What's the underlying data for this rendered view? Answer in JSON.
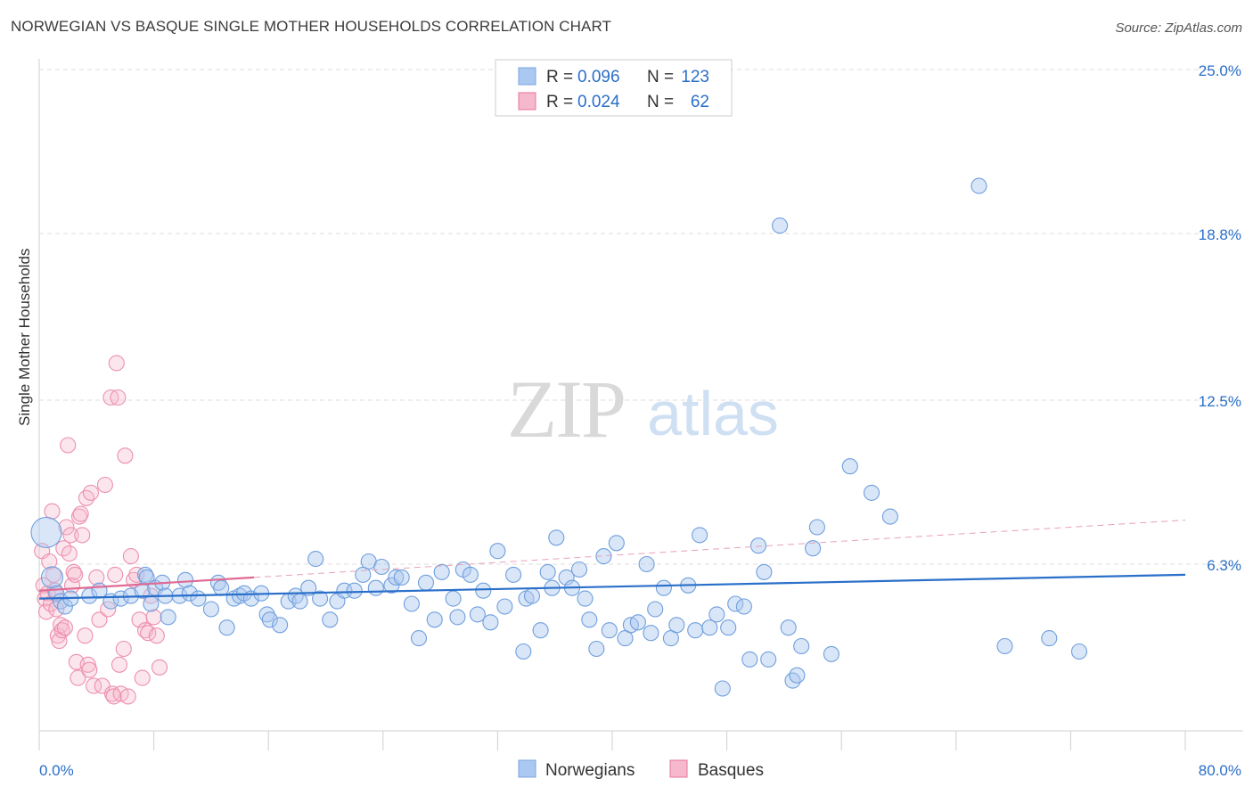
{
  "title": "NORWEGIAN VS BASQUE SINGLE MOTHER HOUSEHOLDS CORRELATION CHART",
  "source": "Source: ZipAtlas.com",
  "watermark": {
    "zip": "ZIP",
    "atlas": "atlas"
  },
  "colors": {
    "blue": "#2a6fc9",
    "blue_fill": "#aac8f0",
    "pink": "#e8739b",
    "pink_fill": "#f6b8cc",
    "axis_text": "#2a6fc9",
    "grid": "#dddddd"
  },
  "legend": {
    "rows": [
      {
        "r_label": "R =",
        "r_value": "0.096",
        "n_label": "N =",
        "n_value": "123"
      },
      {
        "r_label": "R =",
        "r_value": "0.024",
        "n_label": "N =",
        "n_value": "62"
      }
    ]
  },
  "chart_data": {
    "type": "scatter",
    "title": "NORWEGIAN VS BASQUE SINGLE MOTHER HOUSEHOLDS CORRELATION CHART",
    "xlabel": "",
    "ylabel": "Single Mother Households",
    "xlim": [
      0,
      80
    ],
    "ylim": [
      0,
      25
    ],
    "x_tick_labels": [
      "0.0%",
      "80.0%"
    ],
    "y_ticks": [
      6.3,
      12.5,
      18.8,
      25.0
    ],
    "y_tick_labels": [
      "6.3%",
      "12.5%",
      "18.8%",
      "25.0%"
    ],
    "grid": true,
    "legend_position": "top-center",
    "series": [
      {
        "name": "Norwegians",
        "color": "#2a6fc9",
        "trend": {
          "x": [
            0,
            80
          ],
          "y": [
            5.0,
            5.9
          ]
        },
        "points": [
          [
            0.5,
            7.5
          ],
          [
            0.9,
            5.8
          ],
          [
            1.2,
            5.2
          ],
          [
            1.5,
            4.9
          ],
          [
            1.8,
            4.7
          ],
          [
            2.2,
            5.0
          ],
          [
            3.5,
            5.1
          ],
          [
            4.2,
            5.3
          ],
          [
            5.0,
            4.9
          ],
          [
            5.7,
            5.0
          ],
          [
            6.4,
            5.1
          ],
          [
            7.2,
            5.3
          ],
          [
            7.4,
            5.9
          ],
          [
            7.5,
            5.8
          ],
          [
            7.8,
            4.8
          ],
          [
            8.1,
            5.4
          ],
          [
            8.6,
            5.6
          ],
          [
            8.8,
            5.1
          ],
          [
            9.0,
            4.3
          ],
          [
            9.8,
            5.1
          ],
          [
            10.2,
            5.7
          ],
          [
            10.5,
            5.2
          ],
          [
            11.1,
            5.0
          ],
          [
            12.0,
            4.6
          ],
          [
            12.5,
            5.6
          ],
          [
            12.7,
            5.4
          ],
          [
            13.1,
            3.9
          ],
          [
            13.6,
            5.0
          ],
          [
            14.0,
            5.1
          ],
          [
            14.3,
            5.2
          ],
          [
            14.8,
            5.0
          ],
          [
            15.5,
            5.2
          ],
          [
            15.9,
            4.4
          ],
          [
            16.1,
            4.2
          ],
          [
            16.8,
            4.0
          ],
          [
            17.4,
            4.9
          ],
          [
            17.9,
            5.1
          ],
          [
            18.2,
            4.9
          ],
          [
            18.8,
            5.4
          ],
          [
            19.3,
            6.5
          ],
          [
            19.6,
            5.0
          ],
          [
            20.3,
            4.2
          ],
          [
            20.8,
            4.9
          ],
          [
            21.3,
            5.3
          ],
          [
            22.0,
            5.3
          ],
          [
            22.6,
            5.9
          ],
          [
            23.0,
            6.4
          ],
          [
            23.5,
            5.4
          ],
          [
            23.9,
            6.2
          ],
          [
            24.6,
            5.5
          ],
          [
            24.9,
            5.8
          ],
          [
            25.3,
            5.8
          ],
          [
            26.0,
            4.8
          ],
          [
            26.5,
            3.5
          ],
          [
            27.0,
            5.6
          ],
          [
            27.6,
            4.2
          ],
          [
            28.1,
            6.0
          ],
          [
            28.9,
            5.0
          ],
          [
            29.2,
            4.3
          ],
          [
            29.6,
            6.1
          ],
          [
            30.1,
            5.9
          ],
          [
            30.6,
            4.4
          ],
          [
            31.0,
            5.3
          ],
          [
            31.5,
            4.1
          ],
          [
            32.0,
            6.8
          ],
          [
            32.5,
            4.7
          ],
          [
            33.1,
            5.9
          ],
          [
            33.8,
            3.0
          ],
          [
            34.0,
            5.0
          ],
          [
            34.4,
            5.1
          ],
          [
            35.0,
            3.8
          ],
          [
            35.5,
            6.0
          ],
          [
            35.8,
            5.4
          ],
          [
            36.1,
            7.3
          ],
          [
            36.8,
            5.8
          ],
          [
            37.2,
            5.4
          ],
          [
            37.7,
            6.1
          ],
          [
            38.1,
            5.0
          ],
          [
            38.4,
            4.2
          ],
          [
            38.9,
            3.1
          ],
          [
            39.4,
            6.6
          ],
          [
            39.8,
            3.8
          ],
          [
            40.3,
            7.1
          ],
          [
            40.9,
            3.5
          ],
          [
            41.3,
            4.0
          ],
          [
            41.8,
            4.1
          ],
          [
            42.4,
            6.3
          ],
          [
            42.7,
            3.7
          ],
          [
            43.0,
            4.6
          ],
          [
            43.6,
            5.4
          ],
          [
            44.1,
            3.5
          ],
          [
            44.5,
            4.0
          ],
          [
            45.3,
            5.5
          ],
          [
            45.8,
            3.8
          ],
          [
            46.1,
            7.4
          ],
          [
            46.8,
            3.9
          ],
          [
            47.3,
            4.4
          ],
          [
            47.7,
            1.6
          ],
          [
            48.1,
            3.9
          ],
          [
            48.6,
            4.8
          ],
          [
            49.2,
            4.7
          ],
          [
            49.6,
            2.7
          ],
          [
            50.2,
            7.0
          ],
          [
            50.6,
            6.0
          ],
          [
            50.9,
            2.7
          ],
          [
            51.7,
            19.1
          ],
          [
            52.3,
            3.9
          ],
          [
            52.6,
            1.9
          ],
          [
            52.9,
            2.1
          ],
          [
            53.2,
            3.2
          ],
          [
            54.0,
            6.9
          ],
          [
            54.3,
            7.7
          ],
          [
            55.3,
            2.9
          ],
          [
            56.6,
            10.0
          ],
          [
            58.1,
            9.0
          ],
          [
            59.4,
            8.1
          ],
          [
            65.6,
            20.6
          ],
          [
            67.4,
            3.2
          ],
          [
            70.5,
            3.5
          ],
          [
            72.6,
            3.0
          ]
        ]
      },
      {
        "name": "Basques",
        "color": "#e8739b",
        "trend": {
          "x": [
            0,
            15
          ],
          "y": [
            5.3,
            5.8
          ]
        },
        "points": [
          [
            0.2,
            6.8
          ],
          [
            0.3,
            5.5
          ],
          [
            0.4,
            5.0
          ],
          [
            0.5,
            4.5
          ],
          [
            0.6,
            5.2
          ],
          [
            0.7,
            6.4
          ],
          [
            0.8,
            4.8
          ],
          [
            0.9,
            8.3
          ],
          [
            1.0,
            5.9
          ],
          [
            1.1,
            5.3
          ],
          [
            1.2,
            4.6
          ],
          [
            1.3,
            3.6
          ],
          [
            1.4,
            3.4
          ],
          [
            1.5,
            4.0
          ],
          [
            1.6,
            3.8
          ],
          [
            1.7,
            6.9
          ],
          [
            1.8,
            3.9
          ],
          [
            1.9,
            7.7
          ],
          [
            2.0,
            10.8
          ],
          [
            2.1,
            6.7
          ],
          [
            2.2,
            7.4
          ],
          [
            2.3,
            5.5
          ],
          [
            2.4,
            6.0
          ],
          [
            2.5,
            5.9
          ],
          [
            2.6,
            2.6
          ],
          [
            2.7,
            2.0
          ],
          [
            2.8,
            8.1
          ],
          [
            2.9,
            8.2
          ],
          [
            3.0,
            7.4
          ],
          [
            3.2,
            3.6
          ],
          [
            3.3,
            8.8
          ],
          [
            3.4,
            2.5
          ],
          [
            3.5,
            2.3
          ],
          [
            3.6,
            9.0
          ],
          [
            3.8,
            1.7
          ],
          [
            4.0,
            5.8
          ],
          [
            4.2,
            4.2
          ],
          [
            4.4,
            1.7
          ],
          [
            4.6,
            9.3
          ],
          [
            4.8,
            4.6
          ],
          [
            5.0,
            12.6
          ],
          [
            5.1,
            1.4
          ],
          [
            5.2,
            1.3
          ],
          [
            5.3,
            5.9
          ],
          [
            5.4,
            13.9
          ],
          [
            5.5,
            12.6
          ],
          [
            5.6,
            2.5
          ],
          [
            5.7,
            1.4
          ],
          [
            5.9,
            3.1
          ],
          [
            6.0,
            10.4
          ],
          [
            6.2,
            1.3
          ],
          [
            6.4,
            6.6
          ],
          [
            6.6,
            5.7
          ],
          [
            6.8,
            5.9
          ],
          [
            7.0,
            4.2
          ],
          [
            7.2,
            2.0
          ],
          [
            7.4,
            3.8
          ],
          [
            7.6,
            3.7
          ],
          [
            7.8,
            5.1
          ],
          [
            8.0,
            4.3
          ],
          [
            8.2,
            3.6
          ],
          [
            8.4,
            2.4
          ]
        ]
      }
    ]
  }
}
